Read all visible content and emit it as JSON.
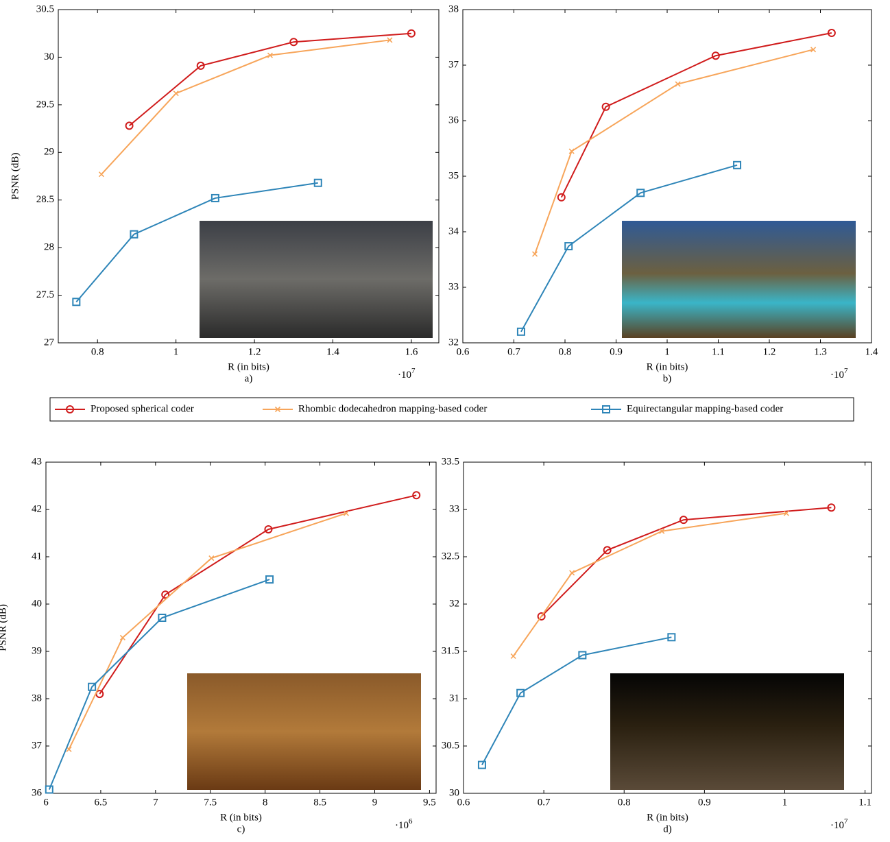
{
  "legend": {
    "entries": [
      {
        "name": "Proposed spherical coder",
        "color": "#d01c1c",
        "marker": "circle"
      },
      {
        "name": "Rhombic dodecahedron mapping-based coder",
        "color": "#f7a55a",
        "marker": "x"
      },
      {
        "name": "Equirectangular mapping-based coder",
        "color": "#2e85b8",
        "marker": "square"
      }
    ]
  },
  "chart_data": [
    {
      "type": "line",
      "panel_label": "a)",
      "x_label": "R (in bits)",
      "y_label": "PSNR (dB)",
      "x_multiplier_base": "·10",
      "x_multiplier_exponent": "7",
      "xlim": [
        0.7,
        1.67
      ],
      "xticks": [
        0.8,
        1,
        1.2,
        1.4,
        1.6
      ],
      "ylim": [
        27,
        30.5
      ],
      "yticks": [
        27,
        27.5,
        28,
        28.5,
        29,
        29.5,
        30,
        30.5
      ],
      "series": [
        {
          "x": [
            0.881,
            1.063,
            1.3,
            1.6
          ],
          "values": [
            29.28,
            29.91,
            30.16,
            30.25
          ]
        },
        {
          "x": [
            0.81,
            1.0,
            1.24,
            1.545
          ],
          "values": [
            28.77,
            29.62,
            30.02,
            30.18
          ]
        },
        {
          "x": [
            0.746,
            0.893,
            1.1,
            1.362
          ],
          "values": [
            27.43,
            28.14,
            28.52,
            28.68
          ]
        }
      ]
    },
    {
      "type": "line",
      "panel_label": "b)",
      "x_label": "R (in bits)",
      "x_multiplier_base": "·10",
      "x_multiplier_exponent": "7",
      "xlim": [
        0.6,
        1.4
      ],
      "xticks": [
        0.6,
        0.7,
        0.8,
        0.9,
        1,
        1.1,
        1.2,
        1.3,
        1.4
      ],
      "ylim": [
        32,
        38
      ],
      "yticks": [
        32,
        33,
        34,
        35,
        36,
        37,
        38
      ],
      "series": [
        {
          "x": [
            0.793,
            0.88,
            1.095,
            1.322
          ],
          "values": [
            34.62,
            36.25,
            37.17,
            37.58
          ]
        },
        {
          "x": [
            0.741,
            0.813,
            1.021,
            1.286
          ],
          "values": [
            33.6,
            35.45,
            36.66,
            37.28
          ]
        },
        {
          "x": [
            0.714,
            0.807,
            0.948,
            1.137
          ],
          "values": [
            32.2,
            33.74,
            34.7,
            35.2
          ]
        }
      ]
    },
    {
      "type": "line",
      "panel_label": "c)",
      "x_label": "R (in bits)",
      "y_label": "PSNR (dB)",
      "x_multiplier_base": "·10",
      "x_multiplier_exponent": "6",
      "xlim": [
        6,
        9.56
      ],
      "xticks": [
        6,
        6.5,
        7,
        7.5,
        8,
        8.5,
        9,
        9.5
      ],
      "ylim": [
        36,
        43
      ],
      "yticks": [
        36,
        37,
        38,
        39,
        40,
        41,
        42,
        43
      ],
      "series": [
        {
          "x": [
            6.49,
            7.09,
            8.03,
            9.38
          ],
          "values": [
            38.1,
            40.2,
            41.58,
            42.3
          ]
        },
        {
          "x": [
            6.21,
            6.7,
            7.51,
            8.74
          ],
          "values": [
            36.93,
            39.29,
            40.97,
            41.92
          ]
        },
        {
          "x": [
            6.03,
            6.42,
            7.06,
            8.04
          ],
          "values": [
            36.08,
            38.25,
            39.71,
            40.52
          ]
        }
      ]
    },
    {
      "type": "line",
      "panel_label": "d)",
      "x_label": "R (in bits)",
      "x_multiplier_base": "·10",
      "x_multiplier_exponent": "7",
      "xlim": [
        0.6,
        1.108
      ],
      "xticks": [
        0.6,
        0.7,
        0.8,
        0.9,
        1,
        1.1
      ],
      "ylim": [
        30,
        33.5
      ],
      "yticks": [
        30,
        30.5,
        31,
        31.5,
        32,
        32.5,
        33,
        33.5
      ],
      "series": [
        {
          "x": [
            0.697,
            0.779,
            0.874,
            1.058
          ],
          "values": [
            31.87,
            32.57,
            32.89,
            33.02
          ]
        },
        {
          "x": [
            0.662,
            0.735,
            0.847,
            1.002
          ],
          "values": [
            31.45,
            32.33,
            32.77,
            32.96
          ]
        },
        {
          "x": [
            0.623,
            0.671,
            0.748,
            0.859
          ],
          "values": [
            30.3,
            31.06,
            31.46,
            31.65
          ]
        }
      ]
    }
  ]
}
